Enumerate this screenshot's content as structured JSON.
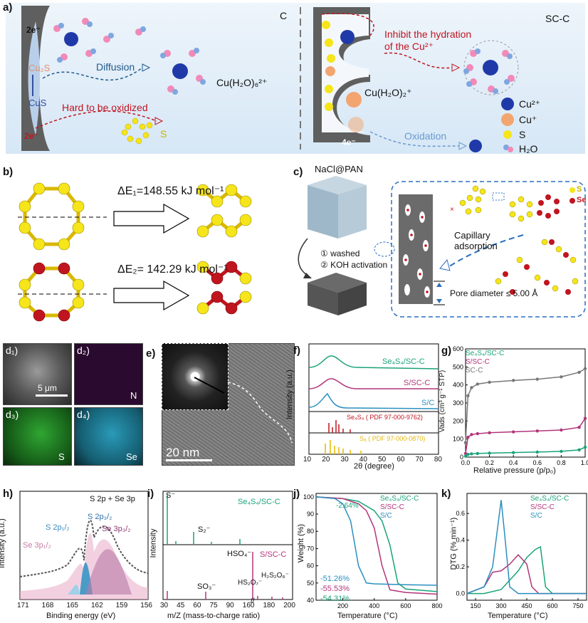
{
  "panel_a": {
    "label": "a)",
    "left": {
      "electrons_top": "2e⁻",
      "electrons_bottom": "2e⁻",
      "cu2s": "Cu₂S",
      "cus": "CuS",
      "diffusion": "Diffusion",
      "hard_to_oxidize": "Hard to be oxidized",
      "sulfur": "S",
      "complex": "Cu(H₂O)₆²⁺"
    },
    "carbon_label": "C",
    "right": {
      "name": "SC-C",
      "inhibit": "Inhibit the hydration of the Cu²⁺",
      "complex": "Cu(H₂O)₂⁺",
      "electrons": "4e⁻",
      "oxidation": "Oxidation"
    },
    "legend": [
      {
        "label": "Cu²⁺",
        "color": "#1f3aa8"
      },
      {
        "label": "Cu⁺",
        "color": "#f3a56f"
      },
      {
        "label": "S",
        "color": "#f5e51a"
      },
      {
        "label": "H₂O",
        "color": "#7fa6e0"
      }
    ]
  },
  "panel_b": {
    "label": "b)",
    "e1": "ΔE₁=148.55 kJ mol⁻¹",
    "e2": "ΔE₂= 142.29 kJ mol⁻¹"
  },
  "panel_c": {
    "label": "c)",
    "precursor": "NaCl@PAN",
    "step1": "① washed",
    "step2": "② KOH activation",
    "capillary": "Capillary adsorption",
    "pore": "Pore diameter ≤ 5.00 Å",
    "legend_s": "S",
    "legend_se": "Se"
  },
  "panel_d": {
    "d1": "d₁)",
    "d2": "d₂)",
    "d3": "d₃)",
    "d4": "d₄)",
    "scale": "5 μm",
    "n": "N",
    "s": "S",
    "se": "Se"
  },
  "panel_e": {
    "label": "e)",
    "scale": "20 nm"
  },
  "panel_f": {
    "label": "f)",
    "ylabel": "Intensity (a.u.)",
    "xlabel": "2θ (degree)",
    "series": [
      "Se₄S₄/SC-C",
      "S/SC-C",
      "S/C"
    ],
    "ref1": "Se₄S₄ ( PDF 97-000-9762)",
    "ref2": "S₈ ( PDF 97-000-0870)",
    "xticks": [
      "10",
      "20",
      "30",
      "40",
      "50",
      "60",
      "70",
      "80"
    ]
  },
  "panel_g": {
    "label": "g)",
    "ylabel": "Vads (cm³ g⁻¹ STP)",
    "xlabel": "Relative pressure (p/p₀)",
    "legend": [
      "Se₄S₄/SC-C",
      "S/SC-C",
      "SC-C"
    ],
    "yticks": [
      "0",
      "100",
      "200",
      "300",
      "400",
      "500",
      "600"
    ],
    "xticks": [
      "0.0",
      "0.2",
      "0.4",
      "0.6",
      "0.8",
      "1.0"
    ]
  },
  "panel_h": {
    "label": "h)",
    "title": "S 2p + Se 3p",
    "ylabel": "Intensity (a.u.)",
    "xlabel": "Binding energy (eV)",
    "peaks": [
      "Se 3p₁/₂",
      "S 2p₁/₂",
      "S 2p₃/₂",
      "Se 3p₃/₂"
    ],
    "xticks": [
      "171",
      "168",
      "165",
      "162",
      "159",
      "156"
    ]
  },
  "panel_i": {
    "label": "i)",
    "ylabel": "Intensity",
    "xlabel": "m/Z (mass-to-charge ratio)",
    "top_name": "Se₄S₄/SC-C",
    "bottom_name": "S/SC-C",
    "peaks_top": [
      "S⁻",
      "S₂⁻"
    ],
    "peaks_bottom": [
      "HSO₄⁻",
      "SO₃⁻",
      "HS₂O₇⁻",
      "H₂S₂O₈⁻"
    ],
    "xticks": [
      "30",
      "45",
      "60",
      "75",
      "90",
      "160",
      "180",
      "200"
    ]
  },
  "panel_j": {
    "label": "j)",
    "ylabel": "Weight (%)",
    "xlabel": "Temperature (°C)",
    "legend": [
      "Se₄S₄/SC-C",
      "S/SC-C",
      "S/C"
    ],
    "annotations": [
      "-2.64%",
      "-51.26%",
      "-55.53%",
      "-54.31%"
    ],
    "yticks": [
      "40",
      "50",
      "60",
      "70",
      "80",
      "90",
      "100"
    ],
    "xticks": [
      "200",
      "400",
      "600",
      "800"
    ]
  },
  "panel_k": {
    "label": "k)",
    "ylabel": "DTG (% min⁻¹)",
    "xlabel": "Temperature (°C)",
    "legend": [
      "Se₄S₄/SC-C",
      "S/SC-C",
      "S/C"
    ],
    "yticks": [
      "0.0",
      "0.2",
      "0.4",
      "0.6"
    ],
    "xticks": [
      "150",
      "300",
      "450",
      "600",
      "750"
    ]
  },
  "colors": {
    "green": "#1aa37a",
    "magenta": "#b2347a",
    "blue": "#2b8fbf",
    "gray": "#777777",
    "red": "#c0151f"
  },
  "chart_data": [
    {
      "type": "line",
      "title": "",
      "xlabel": "Relative pressure (p/p₀)",
      "ylabel": "Vads (cm³ g⁻¹ STP)",
      "ylim": [
        0,
        600
      ],
      "xlim": [
        0,
        1.0
      ],
      "series": [
        {
          "name": "SC-C",
          "x": [
            0.0,
            0.02,
            0.05,
            0.1,
            0.2,
            0.4,
            0.6,
            0.8,
            0.95,
            1.0
          ],
          "values": [
            80,
            340,
            385,
            405,
            415,
            425,
            432,
            445,
            470,
            490
          ]
        },
        {
          "name": "S/SC-C",
          "x": [
            0.0,
            0.02,
            0.05,
            0.1,
            0.2,
            0.4,
            0.6,
            0.8,
            0.95,
            1.0
          ],
          "values": [
            20,
            110,
            125,
            130,
            135,
            140,
            145,
            150,
            165,
            215
          ]
        },
        {
          "name": "Se₄S₄/SC-C",
          "x": [
            0.0,
            0.02,
            0.05,
            0.1,
            0.2,
            0.4,
            0.6,
            0.8,
            0.95,
            1.0
          ],
          "values": [
            5,
            15,
            18,
            20,
            22,
            25,
            28,
            32,
            40,
            55
          ]
        }
      ]
    },
    {
      "type": "line",
      "title": "",
      "xlabel": "Temperature (°C)",
      "ylabel": "Weight (%)",
      "ylim": [
        40,
        102
      ],
      "xlim": [
        30,
        800
      ],
      "series": [
        {
          "name": "Se₄S₄/SC-C",
          "x": [
            30,
            200,
            300,
            400,
            450,
            500,
            550,
            600,
            800
          ],
          "values": [
            100,
            99,
            97.4,
            92,
            86,
            72,
            50,
            46.5,
            45
          ]
        },
        {
          "name": "S/SC-C",
          "x": [
            30,
            200,
            300,
            350,
            400,
            450,
            500,
            600,
            800
          ],
          "values": [
            100,
            99,
            96,
            92,
            82,
            60,
            46,
            44.5,
            43.5
          ]
        },
        {
          "name": "S/C",
          "x": [
            30,
            150,
            200,
            250,
            300,
            350,
            400,
            600,
            800
          ],
          "values": [
            100,
            99,
            96,
            86,
            60,
            50,
            49.5,
            49,
            48.7
          ]
        }
      ]
    },
    {
      "type": "line",
      "title": "",
      "xlabel": "Temperature (°C)",
      "ylabel": "DTG (% min⁻¹)",
      "ylim": [
        -0.05,
        0.75
      ],
      "xlim": [
        100,
        800
      ],
      "series": [
        {
          "name": "Se₄S₄/SC-C",
          "x": [
            100,
            200,
            300,
            400,
            450,
            500,
            530,
            560,
            600,
            800
          ],
          "values": [
            0.0,
            0.0,
            0.03,
            0.17,
            0.27,
            0.33,
            0.35,
            0.05,
            0.0,
            0.0
          ]
        },
        {
          "name": "S/SC-C",
          "x": [
            100,
            200,
            250,
            300,
            350,
            400,
            450,
            480,
            520,
            800
          ],
          "values": [
            0.0,
            0.05,
            0.16,
            0.17,
            0.22,
            0.29,
            0.22,
            0.05,
            0.0,
            0.0
          ]
        },
        {
          "name": "S/C",
          "x": [
            100,
            200,
            250,
            280,
            300,
            320,
            350,
            400,
            800
          ],
          "values": [
            0.0,
            0.05,
            0.2,
            0.5,
            0.7,
            0.45,
            0.05,
            0.0,
            0.0
          ]
        }
      ]
    }
  ]
}
